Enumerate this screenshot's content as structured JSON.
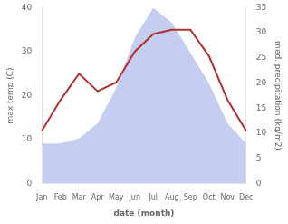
{
  "chart_data": {
    "type": "line",
    "categories": [
      "Jan",
      "Feb",
      "Mar",
      "Apr",
      "May",
      "Jun",
      "Jul",
      "Aug",
      "Sep",
      "Oct",
      "Nov",
      "Dec"
    ],
    "xlabel": "date (month)",
    "ylabel": "max temp (C)",
    "y2label": "med. precipitation (kg/m2)",
    "series": [
      {
        "type": "area",
        "color": "#c5cdf0",
        "axis": "y2",
        "values": [
          8,
          8,
          9,
          12,
          19,
          29,
          35,
          32,
          26,
          20,
          12,
          8
        ]
      },
      {
        "type": "line",
        "color": "#b03030",
        "values": [
          12,
          19,
          25,
          21,
          23,
          30,
          34,
          35,
          35,
          29,
          19,
          12
        ]
      }
    ],
    "ylim": [
      0,
      40
    ],
    "yticks": [
      0,
      10,
      20,
      30,
      40
    ],
    "y2lim": [
      0,
      35
    ],
    "y2ticks": [
      0,
      5,
      10,
      15,
      20,
      25,
      30,
      35
    ],
    "grid": false
  }
}
